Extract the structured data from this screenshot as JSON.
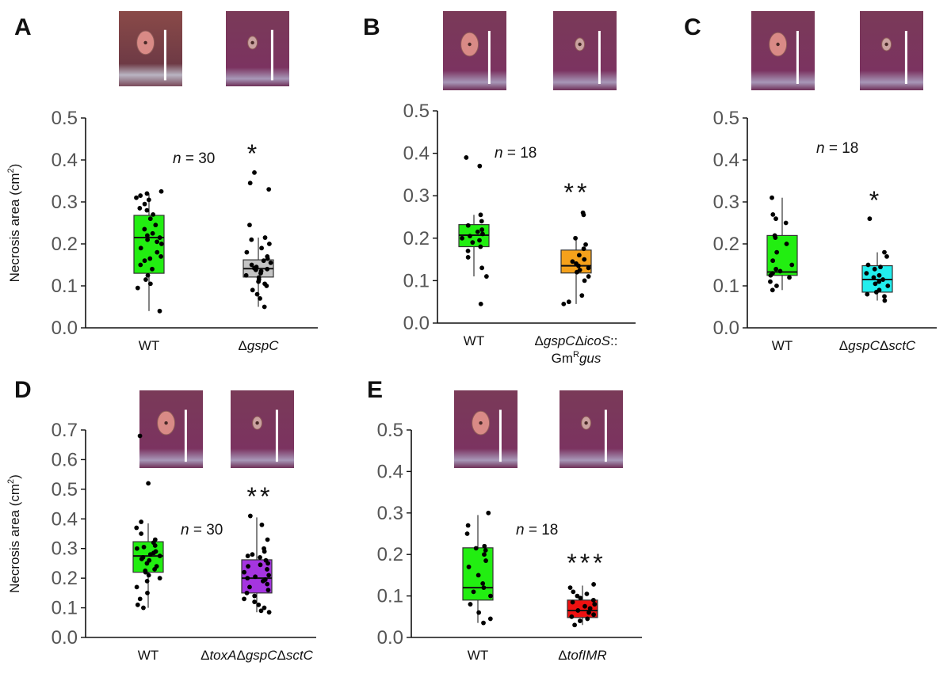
{
  "y_axis_label": "Necrosis area (cm",
  "y_axis_label_sup": "2",
  "y_axis_label_end": ")",
  "colors": {
    "green": "#22ee11",
    "gray": "#c4c4c4",
    "orange": "#f5a11b",
    "cyan": "#22eeee",
    "purple": "#a535e0",
    "red": "#ee1111"
  },
  "chart_data": [
    {
      "panel": "A",
      "type": "box",
      "ylim": [
        0,
        0.5
      ],
      "yticks": [
        0.0,
        0.1,
        0.2,
        0.3,
        0.4,
        0.5
      ],
      "n_label": "n",
      "n_text": " = 30",
      "significance": "*",
      "categories": [
        {
          "label": "WT",
          "label_parts": [
            {
              "t": "WT",
              "i": false
            }
          ],
          "color": "#22ee11",
          "box": {
            "q1": 0.13,
            "median": 0.215,
            "q3": 0.268,
            "whisker_low": 0.04,
            "whisker_high": 0.32
          },
          "points": [
            0.04,
            0.095,
            0.105,
            0.115,
            0.125,
            0.14,
            0.15,
            0.16,
            0.165,
            0.17,
            0.18,
            0.19,
            0.2,
            0.205,
            0.21,
            0.215,
            0.22,
            0.225,
            0.235,
            0.245,
            0.26,
            0.27,
            0.28,
            0.285,
            0.295,
            0.305,
            0.31,
            0.315,
            0.32,
            0.325
          ]
        },
        {
          "label": "ΔgspC",
          "label_parts": [
            {
              "t": "Δ",
              "i": false
            },
            {
              "t": "gspC",
              "i": true
            }
          ],
          "color": "#c4c4c4",
          "box": {
            "q1": 0.121,
            "median": 0.141,
            "q3": 0.162,
            "whisker_low": 0.05,
            "whisker_high": 0.215
          },
          "points": [
            0.05,
            0.07,
            0.08,
            0.09,
            0.1,
            0.105,
            0.11,
            0.115,
            0.12,
            0.125,
            0.13,
            0.135,
            0.138,
            0.14,
            0.142,
            0.145,
            0.15,
            0.155,
            0.16,
            0.165,
            0.17,
            0.18,
            0.19,
            0.2,
            0.21,
            0.215,
            0.245,
            0.33,
            0.345,
            0.37
          ]
        }
      ]
    },
    {
      "panel": "B",
      "type": "box",
      "ylim": [
        0,
        0.5
      ],
      "yticks": [
        0.0,
        0.1,
        0.2,
        0.3,
        0.4,
        0.5
      ],
      "n_label": "n",
      "n_text": " = 18",
      "significance": "**",
      "categories": [
        {
          "label": "WT",
          "label_parts": [
            {
              "t": "WT",
              "i": false
            }
          ],
          "color": "#22ee11",
          "box": {
            "q1": 0.18,
            "median": 0.207,
            "q3": 0.232,
            "whisker_low": 0.11,
            "whisker_high": 0.255
          },
          "points": [
            0.045,
            0.11,
            0.13,
            0.155,
            0.17,
            0.18,
            0.19,
            0.195,
            0.2,
            0.205,
            0.21,
            0.215,
            0.22,
            0.23,
            0.24,
            0.255,
            0.37,
            0.39
          ]
        },
        {
          "label": "ΔgspCΔicoS::GmRgus",
          "label_parts": [
            {
              "t": "Δ",
              "i": false
            },
            {
              "t": "gspC",
              "i": true
            },
            {
              "t": "Δ",
              "i": false
            },
            {
              "t": "icoS",
              "i": true
            },
            {
              "t": "::",
              "i": false
            }
          ],
          "label_line2": [
            {
              "t": "Gm",
              "i": false,
              "sup": false
            },
            {
              "t": "R",
              "i": false,
              "sup": true
            },
            {
              "t": "gus",
              "i": true,
              "sup": false
            }
          ],
          "color": "#f5a11b",
          "box": {
            "q1": 0.118,
            "median": 0.135,
            "q3": 0.172,
            "whisker_low": 0.045,
            "whisker_high": 0.2
          },
          "points": [
            0.045,
            0.05,
            0.065,
            0.1,
            0.11,
            0.12,
            0.125,
            0.13,
            0.135,
            0.14,
            0.145,
            0.15,
            0.16,
            0.175,
            0.185,
            0.2,
            0.255,
            0.26
          ]
        }
      ]
    },
    {
      "panel": "C",
      "type": "box",
      "ylim": [
        0,
        0.5
      ],
      "yticks": [
        0.0,
        0.1,
        0.2,
        0.3,
        0.4,
        0.5
      ],
      "n_label": "n",
      "n_text": " = 18",
      "significance": "*",
      "categories": [
        {
          "label": "WT",
          "label_parts": [
            {
              "t": "WT",
              "i": false
            }
          ],
          "color": "#22ee11",
          "box": {
            "q1": 0.125,
            "median": 0.133,
            "q3": 0.22,
            "whisker_low": 0.09,
            "whisker_high": 0.31
          },
          "points": [
            0.09,
            0.1,
            0.11,
            0.12,
            0.125,
            0.13,
            0.135,
            0.14,
            0.15,
            0.16,
            0.18,
            0.2,
            0.215,
            0.22,
            0.25,
            0.26,
            0.27,
            0.31
          ]
        },
        {
          "label": "ΔgspCΔsctC",
          "label_parts": [
            {
              "t": "Δ",
              "i": false
            },
            {
              "t": "gspC",
              "i": true
            },
            {
              "t": "Δ",
              "i": false
            },
            {
              "t": "sctC",
              "i": true
            }
          ],
          "color": "#22eeee",
          "box": {
            "q1": 0.085,
            "median": 0.115,
            "q3": 0.148,
            "whisker_low": 0.065,
            "whisker_high": 0.18
          },
          "points": [
            0.065,
            0.075,
            0.08,
            0.085,
            0.09,
            0.1,
            0.105,
            0.11,
            0.115,
            0.12,
            0.125,
            0.13,
            0.14,
            0.145,
            0.15,
            0.17,
            0.18,
            0.26
          ]
        }
      ]
    },
    {
      "panel": "D",
      "type": "box",
      "ylim": [
        0,
        0.7
      ],
      "yticks": [
        0.0,
        0.1,
        0.2,
        0.3,
        0.4,
        0.5,
        0.6,
        0.7
      ],
      "n_label": "n",
      "n_text": " = 30",
      "significance": "**",
      "categories": [
        {
          "label": "WT",
          "label_parts": [
            {
              "t": "WT",
              "i": false
            }
          ],
          "color": "#22ee11",
          "box": {
            "q1": 0.22,
            "median": 0.275,
            "q3": 0.323,
            "whisker_low": 0.1,
            "whisker_high": 0.385
          },
          "points": [
            0.1,
            0.11,
            0.13,
            0.15,
            0.17,
            0.19,
            0.2,
            0.21,
            0.22,
            0.225,
            0.23,
            0.24,
            0.25,
            0.26,
            0.265,
            0.27,
            0.275,
            0.28,
            0.285,
            0.29,
            0.3,
            0.305,
            0.31,
            0.32,
            0.33,
            0.35,
            0.37,
            0.39,
            0.52,
            0.68
          ]
        },
        {
          "label": "ΔtoxAΔgspCΔsctC",
          "label_parts": [
            {
              "t": "Δ",
              "i": false
            },
            {
              "t": "toxA",
              "i": true
            },
            {
              "t": "Δ",
              "i": false
            },
            {
              "t": "gspC",
              "i": true
            },
            {
              "t": "Δ",
              "i": false
            },
            {
              "t": "sctC",
              "i": true
            }
          ],
          "color": "#a535e0",
          "box": {
            "q1": 0.15,
            "median": 0.2,
            "q3": 0.262,
            "whisker_low": 0.085,
            "whisker_high": 0.405
          },
          "points": [
            0.085,
            0.09,
            0.1,
            0.11,
            0.12,
            0.13,
            0.14,
            0.15,
            0.16,
            0.17,
            0.18,
            0.19,
            0.195,
            0.2,
            0.205,
            0.21,
            0.22,
            0.23,
            0.24,
            0.245,
            0.25,
            0.26,
            0.27,
            0.275,
            0.28,
            0.29,
            0.3,
            0.33,
            0.38,
            0.41
          ]
        }
      ]
    },
    {
      "panel": "E",
      "type": "box",
      "ylim": [
        0,
        0.5
      ],
      "yticks": [
        0.0,
        0.1,
        0.2,
        0.3,
        0.4,
        0.5
      ],
      "n_label": "n",
      "n_text": " = 18",
      "significance": "***",
      "categories": [
        {
          "label": "WT",
          "label_parts": [
            {
              "t": "WT",
              "i": false
            }
          ],
          "color": "#22ee11",
          "box": {
            "q1": 0.09,
            "median": 0.12,
            "q3": 0.216,
            "whisker_low": 0.035,
            "whisker_high": 0.295
          },
          "points": [
            0.035,
            0.045,
            0.06,
            0.08,
            0.1,
            0.11,
            0.12,
            0.13,
            0.15,
            0.17,
            0.185,
            0.2,
            0.21,
            0.215,
            0.22,
            0.25,
            0.27,
            0.3
          ]
        },
        {
          "label": "ΔtofIMR",
          "label_parts": [
            {
              "t": "Δ",
              "i": false
            },
            {
              "t": "tofIMR",
              "i": true
            }
          ],
          "color": "#ee1111",
          "box": {
            "q1": 0.048,
            "median": 0.065,
            "q3": 0.09,
            "whisker_low": 0.03,
            "whisker_high": 0.125
          },
          "points": [
            0.03,
            0.04,
            0.045,
            0.05,
            0.055,
            0.06,
            0.065,
            0.07,
            0.075,
            0.08,
            0.085,
            0.09,
            0.095,
            0.1,
            0.105,
            0.11,
            0.12,
            0.128
          ]
        }
      ]
    }
  ]
}
